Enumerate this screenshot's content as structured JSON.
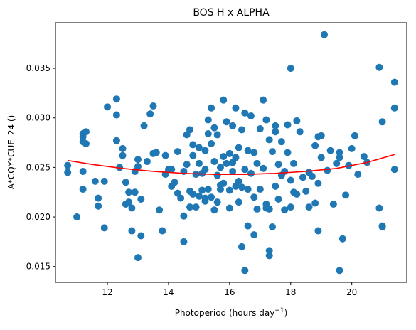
{
  "chart_data": {
    "type": "scatter",
    "title": "BOS H x ALPHA",
    "xlabel": "Photoperiod (hours day",
    "xlabel_superscript": "−1",
    "xlabel_suffix": ")",
    "ylabel": "A*CQY*CUE_24 ()",
    "xlim": [
      10.3,
      21.8
    ],
    "ylim": [
      0.0134,
      0.0396
    ],
    "x_ticks": [
      12,
      14,
      16,
      18,
      20
    ],
    "x_tick_labels": [
      "12",
      "14",
      "16",
      "18",
      "20"
    ],
    "y_ticks": [
      0.015,
      0.02,
      0.025,
      0.03,
      0.035
    ],
    "y_tick_labels": [
      "0.015",
      "0.020",
      "0.025",
      "0.030",
      "0.035"
    ],
    "grid": false,
    "colors": {
      "points": "#1f77b4",
      "fit": "#ff0000",
      "axes": "#000000",
      "background": "#ffffff"
    },
    "series": [
      {
        "kind": "points",
        "x": [
          10.7,
          10.7,
          11.0,
          11.2,
          11.2,
          11.2,
          11.2,
          11.3,
          11.2,
          11.3,
          11.6,
          11.7,
          11.7,
          12.0,
          11.9,
          11.9,
          12.3,
          12.3,
          12.3,
          12.4,
          12.5,
          12.5,
          12.6,
          12.6,
          12.7,
          12.7,
          12.8,
          12.8,
          12.9,
          13.0,
          13.0,
          13.0,
          13.1,
          13.1,
          13.2,
          13.3,
          13.4,
          13.5,
          13.5,
          13.6,
          13.7,
          13.8,
          13.9,
          14.0,
          14.1,
          14.2,
          14.3,
          14.3,
          14.4,
          14.5,
          14.5,
          14.5,
          14.6,
          14.6,
          14.7,
          14.7,
          14.7,
          14.8,
          14.8,
          14.8,
          14.9,
          14.9,
          15.0,
          15.0,
          15.0,
          15.1,
          15.1,
          15.2,
          15.2,
          15.2,
          15.3,
          15.3,
          15.3,
          15.4,
          15.4,
          15.4,
          15.5,
          15.5,
          15.5,
          15.6,
          15.6,
          15.6,
          15.7,
          15.7,
          15.8,
          15.8,
          15.8,
          15.9,
          15.9,
          16.0,
          16.0,
          16.0,
          16.1,
          16.1,
          16.1,
          16.2,
          16.2,
          16.2,
          16.3,
          16.3,
          16.3,
          16.4,
          16.4,
          16.4,
          16.5,
          16.5,
          16.5,
          16.6,
          16.6,
          16.7,
          16.7,
          16.8,
          16.8,
          16.9,
          16.9,
          17.0,
          17.0,
          17.1,
          17.1,
          17.2,
          17.2,
          17.3,
          17.3,
          17.3,
          17.4,
          17.4,
          17.5,
          17.5,
          17.5,
          17.6,
          17.6,
          17.7,
          17.7,
          17.8,
          17.8,
          17.9,
          17.9,
          18.0,
          18.0,
          18.0,
          18.1,
          18.1,
          18.2,
          18.2,
          18.3,
          18.4,
          18.5,
          18.6,
          18.6,
          18.7,
          18.8,
          18.8,
          18.9,
          18.9,
          19.0,
          19.0,
          19.1,
          19.2,
          19.3,
          19.4,
          19.5,
          19.6,
          19.6,
          19.7,
          19.8,
          19.9,
          20.0,
          20.1,
          20.2,
          20.4,
          20.5,
          20.9,
          20.9,
          21.0,
          21.0,
          21.0,
          21.4,
          21.4,
          21.4,
          17.3,
          16.8,
          15.2,
          14.1,
          13.9,
          12.9,
          18.9,
          19.6,
          15.7,
          16.6,
          17.2
        ],
        "y": [
          0.0252,
          0.0245,
          0.02,
          0.0276,
          0.0284,
          0.0246,
          0.0228,
          0.0286,
          0.0281,
          0.0274,
          0.0236,
          0.0219,
          0.0211,
          0.0311,
          0.0236,
          0.0189,
          0.0303,
          0.0319,
          0.0277,
          0.025,
          0.0269,
          0.0262,
          0.0235,
          0.0213,
          0.0225,
          0.0215,
          0.0186,
          0.0209,
          0.0246,
          0.0258,
          0.0251,
          0.0159,
          0.0181,
          0.0218,
          0.0292,
          0.0256,
          0.0304,
          0.0312,
          0.0264,
          0.0265,
          0.0207,
          0.0186,
          0.0262,
          0.0248,
          0.0248,
          0.0235,
          0.0266,
          0.0224,
          0.0219,
          0.0246,
          0.0175,
          0.0201,
          0.0283,
          0.0253,
          0.0288,
          0.0226,
          0.021,
          0.0273,
          0.0262,
          0.0223,
          0.0243,
          0.021,
          0.027,
          0.0254,
          0.0221,
          0.0244,
          0.0227,
          0.0267,
          0.0248,
          0.0216,
          0.0298,
          0.0284,
          0.0228,
          0.031,
          0.0274,
          0.022,
          0.029,
          0.0256,
          0.0207,
          0.0283,
          0.0242,
          0.0215,
          0.025,
          0.0232,
          0.0318,
          0.0261,
          0.0234,
          0.0296,
          0.0254,
          0.0264,
          0.0227,
          0.0209,
          0.0292,
          0.0255,
          0.0246,
          0.031,
          0.026,
          0.0231,
          0.027,
          0.0236,
          0.0215,
          0.0288,
          0.023,
          0.017,
          0.0305,
          0.0248,
          0.0146,
          0.0267,
          0.0228,
          0.0302,
          0.0244,
          0.0265,
          0.022,
          0.0254,
          0.0208,
          0.0289,
          0.0228,
          0.0318,
          0.0249,
          0.0298,
          0.0213,
          0.0278,
          0.0161,
          0.0166,
          0.0266,
          0.019,
          0.0286,
          0.0231,
          0.0292,
          0.0253,
          0.0218,
          0.0276,
          0.0242,
          0.0207,
          0.0246,
          0.0293,
          0.0265,
          0.0237,
          0.021,
          0.035,
          0.0254,
          0.0225,
          0.0297,
          0.0223,
          0.0286,
          0.024,
          0.0226,
          0.021,
          0.0245,
          0.0241,
          0.0214,
          0.0272,
          0.0234,
          0.0186,
          0.0282,
          0.026,
          0.0384,
          0.0247,
          0.0267,
          0.0213,
          0.0254,
          0.026,
          0.0146,
          0.0178,
          0.0222,
          0.0252,
          0.0269,
          0.0282,
          0.0243,
          0.0261,
          0.0255,
          0.0351,
          0.0209,
          0.0296,
          0.0191,
          0.019,
          0.0336,
          0.031,
          0.0248,
          0.0208,
          0.0182,
          0.0219,
          0.0231,
          0.0243,
          0.0225,
          0.0281,
          0.0265,
          0.0228,
          0.0191,
          0.0209
        ]
      },
      {
        "kind": "fit_line",
        "x": [
          10.7,
          11.5,
          12.5,
          13.5,
          14.5,
          15.5,
          16.5,
          17.5,
          18.5,
          19.5,
          20.5,
          21.4
        ],
        "y": [
          0.0257,
          0.0253,
          0.0249,
          0.0246,
          0.0244,
          0.0243,
          0.0243,
          0.0244,
          0.0246,
          0.0249,
          0.0255,
          0.0263
        ]
      }
    ]
  }
}
